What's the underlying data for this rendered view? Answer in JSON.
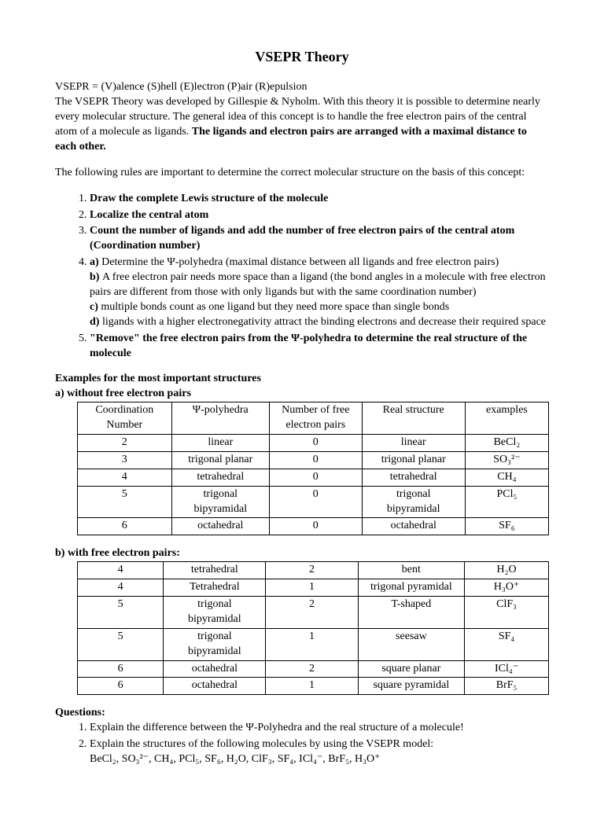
{
  "title": "VSEPR Theory",
  "intro": {
    "line1": "VSEPR = (V)alence (S)hell (E)lectron (P)air (R)epulsion",
    "line2a": "The VSEPR Theory was developed by Gillespie & Nyholm. With this theory it is possible to determine nearly every molecular structure. The general idea of this concept is to handle the free electron pairs of the central atom of a molecule as ligands. ",
    "line2b": "The ligands and electron pairs are arranged with a maximal distance to each other."
  },
  "rules_lead": "The following rules are important to determine the correct molecular structure on the basis of this concept:",
  "rules": {
    "r1": "Draw the complete Lewis structure of the molecule",
    "r2": "Localize the central atom",
    "r3": "Count the number of ligands and add the number of free electron pairs of the central atom (Coordination number)",
    "r4a_lbl": "a) ",
    "r4a": "Determine the Ψ-polyhedra (maximal distance between all ligands and free electron pairs)",
    "r4b_lbl": "b) ",
    "r4b": "A free electron pair needs more space than a ligand (the bond angles in a molecule with free electron pairs are different from those with only ligands but with the same coordination number)",
    "r4c_lbl": "c) ",
    "r4c": "multiple bonds count as one ligand but they need more space than single bonds",
    "r4d_lbl": "d) ",
    "r4d": "ligands with a higher electronegativity attract the binding electrons and decrease their required space",
    "r5": "\"Remove\" the free electron pairs from the Ψ-polyhedra to determine the real structure of the molecule"
  },
  "examples_title": "Examples for the most important structures",
  "table_a_title": "a) without free electron pairs",
  "headers": {
    "h1": "Coordination Number",
    "h2": "Ψ-polyhedra",
    "h3": "Number of free electron pairs",
    "h4": "Real structure",
    "h5": "examples"
  },
  "table_a": {
    "rows": [
      {
        "c1": "2",
        "c2": "linear",
        "c3": "0",
        "c4": "linear",
        "c5": "BeCl₂"
      },
      {
        "c1": "3",
        "c2": "trigonal planar",
        "c3": "0",
        "c4": "trigonal planar",
        "c5": "SO₃²⁻"
      },
      {
        "c1": "4",
        "c2": "tetrahedral",
        "c3": "0",
        "c4": "tetrahedral",
        "c5": "CH₄"
      },
      {
        "c1": "5",
        "c2": "trigonal bipyramidal",
        "c3": "0",
        "c4": "trigonal bipyramidal",
        "c5": "PCl₅"
      },
      {
        "c1": "6",
        "c2": "octahedral",
        "c3": "0",
        "c4": "octahedral",
        "c5": "SF₆"
      }
    ]
  },
  "table_b_title": "b) with free electron pairs:",
  "table_b": {
    "rows": [
      {
        "c1": "4",
        "c2": "tetrahedral",
        "c3": "2",
        "c4": "bent",
        "c5": "H₂O"
      },
      {
        "c1": "4",
        "c2": "Tetrahedral",
        "c3": "1",
        "c4": "trigonal pyramidal",
        "c5": "H₃O⁺"
      },
      {
        "c1": "5",
        "c2": "trigonal bipyramidal",
        "c3": "2",
        "c4": "T-shaped",
        "c5": "ClF₃"
      },
      {
        "c1": "5",
        "c2": "trigonal bipyramidal",
        "c3": "1",
        "c4": "seesaw",
        "c5": "SF₄"
      },
      {
        "c1": "6",
        "c2": "octahedral",
        "c3": "2",
        "c4": "square planar",
        "c5": "ICl₄⁻"
      },
      {
        "c1": "6",
        "c2": "octahedral",
        "c3": "1",
        "c4": "square pyramidal",
        "c5": "BrF₅"
      }
    ]
  },
  "questions_title": "Questions:",
  "questions": {
    "q1": "Explain the difference between the Ψ-Polyhedra and the real structure of a molecule!",
    "q2": "Explain the structures of the following molecules by using the VSEPR model:",
    "q2_list": "BeCl₂, SO₃²⁻, CH₄, PCl₅, SF₆, H₂O, ClF₃, SF₄, ICl₄⁻, BrF₅, H₃O⁺"
  },
  "col_widths": [
    "110",
    "120",
    "120",
    "130",
    "100"
  ]
}
